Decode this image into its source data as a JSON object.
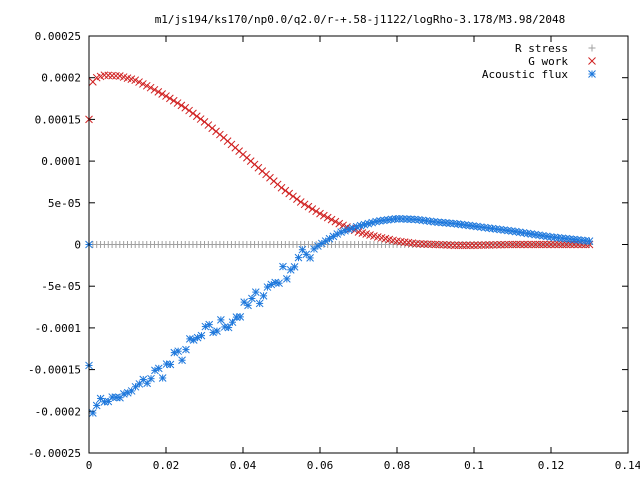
{
  "chart_data": {
    "type": "scatter",
    "title": "m1/js194/ks170/np0.0/q2.0/r-+.58-j1122/logRho-3.178/M3.98/2048",
    "xlabel": "",
    "ylabel": "",
    "xlim": [
      0,
      0.14
    ],
    "ylim": [
      -0.00025,
      0.00025
    ],
    "xticks": [
      "0",
      "0.02",
      "0.04",
      "0.06",
      "0.08",
      "0.1",
      "0.12",
      "0.14"
    ],
    "yticks": [
      "-0.00025",
      "-0.0002",
      "-0.00015",
      "-0.0001",
      "-5e-05",
      "0",
      "5e-05",
      "0.0001",
      "0.00015",
      "0.0002",
      "0.00025"
    ],
    "grid": false,
    "legend_position": "top-right",
    "series": [
      {
        "name": "R stress",
        "marker": "plus",
        "color": "#a0a0a0",
        "x_range": [
          0,
          0.13
        ],
        "count": 131,
        "curve": [
          [
            0,
            0
          ],
          [
            0.13,
            0
          ]
        ]
      },
      {
        "name": "G work",
        "marker": "x",
        "color": "#d02020",
        "x_range": [
          0,
          0.13
        ],
        "count": 131,
        "first_points": [
          [
            0,
            0.00015
          ],
          [
            0.001,
            0.000195
          ]
        ],
        "curve": [
          [
            0.002,
            0.0002
          ],
          [
            0.004,
            0.000203
          ],
          [
            0.008,
            0.000202
          ],
          [
            0.012,
            0.000197
          ],
          [
            0.016,
            0.000188
          ],
          [
            0.02,
            0.000178
          ],
          [
            0.025,
            0.000164
          ],
          [
            0.03,
            0.000147
          ],
          [
            0.035,
            0.000128
          ],
          [
            0.04,
            0.000108
          ],
          [
            0.045,
            8.8e-05
          ],
          [
            0.05,
            6.8e-05
          ],
          [
            0.055,
            5.1e-05
          ],
          [
            0.06,
            3.7e-05
          ],
          [
            0.065,
            2.5e-05
          ],
          [
            0.07,
            1.5e-05
          ],
          [
            0.075,
            9e-06
          ],
          [
            0.08,
            4e-06
          ],
          [
            0.085,
            1e-06
          ],
          [
            0.09,
            0.0
          ],
          [
            0.095,
            -1e-06
          ],
          [
            0.1,
            -1e-06
          ],
          [
            0.11,
            0.0
          ],
          [
            0.12,
            0.0
          ],
          [
            0.13,
            0.0
          ]
        ]
      },
      {
        "name": "Acoustic flux",
        "marker": "star",
        "color": "#1e78dc",
        "x_range": [
          0,
          0.13
        ],
        "count": 131,
        "first_points": [
          [
            0,
            0.0
          ],
          [
            0,
            -0.000145
          ],
          [
            0.001,
            -0.000202
          ]
        ],
        "curve": [
          [
            0.002,
            -0.000189
          ],
          [
            0.005,
            -0.000186
          ],
          [
            0.01,
            -0.00018
          ],
          [
            0.015,
            -0.000161
          ],
          [
            0.02,
            -0.000148
          ],
          [
            0.025,
            -0.000127
          ],
          [
            0.03,
            -0.000108
          ],
          [
            0.035,
            -9.6e-05
          ],
          [
            0.04,
            -8e-05
          ],
          [
            0.045,
            -5.8e-05
          ],
          [
            0.05,
            -3.7e-05
          ],
          [
            0.055,
            -1.7e-05
          ],
          [
            0.06,
            0.0
          ],
          [
            0.065,
            1.4e-05
          ],
          [
            0.07,
            2.2e-05
          ],
          [
            0.075,
            2.8e-05
          ],
          [
            0.08,
            3.1e-05
          ],
          [
            0.085,
            3e-05
          ],
          [
            0.09,
            2.7e-05
          ],
          [
            0.095,
            2.5e-05
          ],
          [
            0.1,
            2.2e-05
          ],
          [
            0.11,
            1.6e-05
          ],
          [
            0.12,
            9e-06
          ],
          [
            0.13,
            4e-06
          ]
        ],
        "scatter_band": [
          0.015,
          0.058
        ]
      }
    ]
  }
}
